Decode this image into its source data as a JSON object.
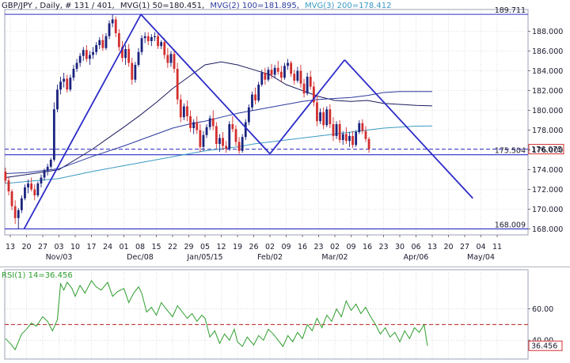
{
  "header": {
    "symbol": "GBP/JPY",
    "meta": ", Daily, # 131 / 401,",
    "mvg1": "MVG(1) 50=180.451,",
    "mvg2": "MVG(2) 100=181.895,",
    "mvg3": "MVG(3) 200=178.412"
  },
  "rsi_header": "RSI(1) 14=36.456",
  "colors": {
    "up": "#1a237e",
    "down": "#d32f2f",
    "trendline": "#2c2cc8",
    "mvg50": "#1c1c5e",
    "mvg100": "#2b3a9e",
    "mvg200": "#3a9ac2",
    "rsi": "#2e9e2e",
    "rsi_level": "#b71c1c",
    "grid": "#c8c8c8"
  },
  "chart_data": [
    {
      "type": "candlestick",
      "title": "GBP/JPY, Daily",
      "ylim": [
        167.4,
        190.2
      ],
      "y_ticks": [
        168.0,
        170.0,
        172.0,
        174.0,
        176.0,
        178.0,
        180.0,
        182.0,
        184.0,
        186.0,
        188.0
      ],
      "day_labels": [
        "13",
        "20",
        "27",
        "03",
        "10",
        "17",
        "24",
        "01",
        "08",
        "15",
        "22",
        "29",
        "05",
        "12",
        "19",
        "26",
        "02",
        "09",
        "16",
        "23",
        "02",
        "09",
        "16",
        "23",
        "30",
        "06",
        "13",
        "20",
        "27",
        "04",
        "11"
      ],
      "month_labels": [
        {
          "index": 3,
          "text": "Nov/03"
        },
        {
          "index": 8,
          "text": "Dec/08"
        },
        {
          "index": 12,
          "text": "Jan/05/15"
        },
        {
          "index": 16,
          "text": "Feb/02"
        },
        {
          "index": 20,
          "text": "Mar/02"
        },
        {
          "index": 25,
          "text": "Apr/06"
        },
        {
          "index": 29,
          "text": "May/04"
        }
      ],
      "price_labels": [
        {
          "value": 189.711,
          "text": "189.711"
        },
        {
          "value": 175.504,
          "text": "175.504"
        },
        {
          "value": 168.009,
          "text": "168.009"
        }
      ],
      "last_price": {
        "value": 176.075,
        "text": "176.075"
      },
      "dashed_level": 176.075,
      "horizontal_lines": [
        189.711,
        175.504,
        168.009
      ],
      "trendlines": [
        {
          "from": [
            0.85,
            168.0
          ],
          "to": [
            8.05,
            189.7
          ]
        },
        {
          "from": [
            8.05,
            189.7
          ],
          "to": [
            16.0,
            175.6
          ]
        },
        {
          "from": [
            16.0,
            175.6
          ],
          "to": [
            20.6,
            185.1
          ]
        },
        {
          "from": [
            20.6,
            185.1
          ],
          "to": [
            28.5,
            171.1
          ]
        }
      ],
      "ohlc_start_index": -0.3,
      "ohlc_step": 0.2,
      "ohlc": [
        [
          173.8,
          174.2,
          172.6,
          172.9
        ],
        [
          172.9,
          173.2,
          171.4,
          171.8
        ],
        [
          171.8,
          172.0,
          169.9,
          170.3
        ],
        [
          170.3,
          170.9,
          168.5,
          169.1
        ],
        [
          169.1,
          170.1,
          168.0,
          169.9
        ],
        [
          169.9,
          171.4,
          169.6,
          171.1
        ],
        [
          171.1,
          172.5,
          170.9,
          172.2
        ],
        [
          172.2,
          173.0,
          171.6,
          172.6
        ],
        [
          172.6,
          173.2,
          171.8,
          172.0
        ],
        [
          172.0,
          172.5,
          170.9,
          171.4
        ],
        [
          171.4,
          172.8,
          171.2,
          172.6
        ],
        [
          172.6,
          173.5,
          172.2,
          173.2
        ],
        [
          173.2,
          174.1,
          172.9,
          173.9
        ],
        [
          173.9,
          174.6,
          173.4,
          174.3
        ],
        [
          174.3,
          175.2,
          174.1,
          175.0
        ],
        [
          175.0,
          180.8,
          174.8,
          180.1
        ],
        [
          180.1,
          182.6,
          179.8,
          182.1
        ],
        [
          182.1,
          183.4,
          181.6,
          182.9
        ],
        [
          182.9,
          183.8,
          182.3,
          183.2
        ],
        [
          183.2,
          183.6,
          181.8,
          182.1
        ],
        [
          182.1,
          183.6,
          181.9,
          183.3
        ],
        [
          183.3,
          184.6,
          183.0,
          184.2
        ],
        [
          184.2,
          185.2,
          183.9,
          184.8
        ],
        [
          184.8,
          185.8,
          184.4,
          185.5
        ],
        [
          185.5,
          186.4,
          185.0,
          186.1
        ],
        [
          186.1,
          186.6,
          184.9,
          185.2
        ],
        [
          185.2,
          186.0,
          184.6,
          185.6
        ],
        [
          185.6,
          186.4,
          185.2,
          185.9
        ],
        [
          185.9,
          186.9,
          185.6,
          186.6
        ],
        [
          186.6,
          187.4,
          186.2,
          187.1
        ],
        [
          187.1,
          187.7,
          186.0,
          186.3
        ],
        [
          186.3,
          187.8,
          186.1,
          187.5
        ],
        [
          187.5,
          189.1,
          187.2,
          188.8
        ],
        [
          188.8,
          189.7,
          188.4,
          189.2
        ],
        [
          189.2,
          189.5,
          187.4,
          187.8
        ],
        [
          187.8,
          188.2,
          186.0,
          186.4
        ],
        [
          186.4,
          187.0,
          184.9,
          185.3
        ],
        [
          185.3,
          186.6,
          184.6,
          186.2
        ],
        [
          186.2,
          186.7,
          184.4,
          184.8
        ],
        [
          184.8,
          185.3,
          182.6,
          183.1
        ],
        [
          183.1,
          184.9,
          182.8,
          184.6
        ],
        [
          184.6,
          186.3,
          184.4,
          185.9
        ],
        [
          185.9,
          187.6,
          185.6,
          187.3
        ],
        [
          187.3,
          187.9,
          186.8,
          187.5
        ],
        [
          187.5,
          187.9,
          186.6,
          187.0
        ],
        [
          187.0,
          187.7,
          186.5,
          187.4
        ],
        [
          187.4,
          187.9,
          187.0,
          187.5
        ],
        [
          187.5,
          187.8,
          186.2,
          186.5
        ],
        [
          186.5,
          187.1,
          186.2,
          186.9
        ],
        [
          186.9,
          187.3,
          185.2,
          185.6
        ],
        [
          185.6,
          186.3,
          184.3,
          184.8
        ],
        [
          184.8,
          186.0,
          184.4,
          185.7
        ],
        [
          185.7,
          186.2,
          183.8,
          184.2
        ],
        [
          184.2,
          184.8,
          180.6,
          181.1
        ],
        [
          181.1,
          181.6,
          178.8,
          179.3
        ],
        [
          179.3,
          180.7,
          179.0,
          180.4
        ],
        [
          180.4,
          181.0,
          178.9,
          179.4
        ],
        [
          179.4,
          180.0,
          177.8,
          178.2
        ],
        [
          178.2,
          179.1,
          177.6,
          178.8
        ],
        [
          178.8,
          179.4,
          177.6,
          178.0
        ],
        [
          178.0,
          178.6,
          175.8,
          176.3
        ],
        [
          176.3,
          177.9,
          175.9,
          177.5
        ],
        [
          177.5,
          178.6,
          177.2,
          178.3
        ],
        [
          178.3,
          179.5,
          178.0,
          179.2
        ],
        [
          179.2,
          180.0,
          178.0,
          178.4
        ],
        [
          178.4,
          178.8,
          176.1,
          176.6
        ],
        [
          176.6,
          177.6,
          175.8,
          177.2
        ],
        [
          177.2,
          177.8,
          176.0,
          176.4
        ],
        [
          176.4,
          176.9,
          175.7,
          176.1
        ],
        [
          176.1,
          178.9,
          175.9,
          178.6
        ],
        [
          178.6,
          179.4,
          177.8,
          178.1
        ],
        [
          178.1,
          178.5,
          176.4,
          176.8
        ],
        [
          176.8,
          177.3,
          175.6,
          175.9
        ],
        [
          175.9,
          177.6,
          175.7,
          177.3
        ],
        [
          177.3,
          179.1,
          177.0,
          178.8
        ],
        [
          178.8,
          180.6,
          178.5,
          180.3
        ],
        [
          180.3,
          181.9,
          180.0,
          181.6
        ],
        [
          181.6,
          182.3,
          180.6,
          181.0
        ],
        [
          181.0,
          182.9,
          180.8,
          182.6
        ],
        [
          182.6,
          184.1,
          182.4,
          183.8
        ],
        [
          183.8,
          184.3,
          182.6,
          183.1
        ],
        [
          183.1,
          184.4,
          182.9,
          184.1
        ],
        [
          184.1,
          184.7,
          183.2,
          183.6
        ],
        [
          183.6,
          184.6,
          183.3,
          184.3
        ],
        [
          184.3,
          185.0,
          183.6,
          183.9
        ],
        [
          183.9,
          184.5,
          182.9,
          183.3
        ],
        [
          183.3,
          184.8,
          183.1,
          184.5
        ],
        [
          184.5,
          185.2,
          184.1,
          184.8
        ],
        [
          184.8,
          185.0,
          183.4,
          183.7
        ],
        [
          183.7,
          184.1,
          182.6,
          183.0
        ],
        [
          183.0,
          184.4,
          182.8,
          184.0
        ],
        [
          184.0,
          184.6,
          182.3,
          182.7
        ],
        [
          182.7,
          183.2,
          181.3,
          181.7
        ],
        [
          181.7,
          183.8,
          181.5,
          183.4
        ],
        [
          183.4,
          184.0,
          182.1,
          182.4
        ],
        [
          182.4,
          182.9,
          180.4,
          180.8
        ],
        [
          180.8,
          181.5,
          178.4,
          178.9
        ],
        [
          178.9,
          180.2,
          178.6,
          179.8
        ],
        [
          179.8,
          180.3,
          178.1,
          178.5
        ],
        [
          178.5,
          180.4,
          178.3,
          180.1
        ],
        [
          180.1,
          180.6,
          178.2,
          178.6
        ],
        [
          178.6,
          179.3,
          176.9,
          177.4
        ],
        [
          177.4,
          178.9,
          177.1,
          178.6
        ],
        [
          178.6,
          179.0,
          176.7,
          177.0
        ],
        [
          177.0,
          177.9,
          176.5,
          177.6
        ],
        [
          177.6,
          178.3,
          176.6,
          176.9
        ],
        [
          176.9,
          177.8,
          176.3,
          177.4
        ],
        [
          177.4,
          177.9,
          176.2,
          176.5
        ],
        [
          176.5,
          178.0,
          176.3,
          177.8
        ],
        [
          177.8,
          179.0,
          177.6,
          178.7
        ],
        [
          178.7,
          179.1,
          177.6,
          177.9
        ],
        [
          177.9,
          178.4,
          176.8,
          177.1
        ],
        [
          177.1,
          177.3,
          175.7,
          176.075
        ]
      ],
      "moving_averages": [
        {
          "name": "MVG(1) 50",
          "x": [
            -0.3,
            1,
            3,
            5,
            7,
            8,
            9,
            10,
            11,
            12,
            13,
            14,
            15,
            16,
            17,
            18,
            19,
            20,
            21,
            22,
            23,
            25,
            26,
            26.0
          ],
          "y": [
            173.2,
            173.5,
            174.0,
            176.0,
            178.3,
            179.5,
            180.8,
            182.2,
            183.4,
            184.6,
            184.9,
            184.6,
            184.1,
            183.6,
            182.6,
            182.0,
            181.4,
            181.0,
            180.9,
            181.0,
            180.7,
            180.5,
            180.45,
            180.45
          ]
        },
        {
          "name": "MVG(2) 100",
          "x": [
            -0.3,
            1,
            3,
            5,
            7,
            8,
            9,
            10,
            11,
            12,
            13,
            14,
            15,
            16,
            17,
            18,
            19,
            20,
            21,
            22,
            23,
            24,
            25,
            26.0
          ],
          "y": [
            173.6,
            173.7,
            174.1,
            175.3,
            176.4,
            177.0,
            177.6,
            178.2,
            178.6,
            178.9,
            179.3,
            179.7,
            180.0,
            180.3,
            180.6,
            180.9,
            181.1,
            181.2,
            181.3,
            181.5,
            181.8,
            181.9,
            181.9,
            181.9
          ]
        },
        {
          "name": "MVG(3) 200",
          "x": [
            -0.3,
            1,
            3,
            5,
            7,
            8,
            9,
            10,
            11,
            12,
            13,
            14,
            15,
            16,
            17,
            18,
            19,
            20,
            21,
            22,
            23,
            24,
            25,
            26.0
          ],
          "y": [
            172.6,
            172.8,
            173.1,
            173.8,
            174.4,
            174.7,
            175.0,
            175.3,
            175.6,
            175.9,
            176.1,
            176.3,
            176.6,
            176.8,
            177.0,
            177.2,
            177.4,
            177.6,
            177.8,
            178.0,
            178.2,
            178.3,
            178.4,
            178.412
          ]
        }
      ]
    },
    {
      "type": "line",
      "title": "RSI(1) 14=36.456",
      "ylim": [
        28,
        85
      ],
      "y_ticks": [
        40.0,
        60.0
      ],
      "reference_level": 50,
      "last_value": {
        "value": 36.456,
        "text": "36.456"
      },
      "x": [
        -0.3,
        0,
        0.3,
        0.7,
        1,
        1.3,
        1.6,
        2,
        2.3,
        2.6,
        2.9,
        3.1,
        3.3,
        3.5,
        3.8,
        4,
        4.3,
        4.6,
        5,
        5.3,
        5.6,
        6,
        6.3,
        6.6,
        7,
        7.3,
        7.6,
        7.9,
        8.1,
        8.4,
        8.7,
        9,
        9.3,
        9.6,
        10,
        10.3,
        10.6,
        10.9,
        11.2,
        11.5,
        11.8,
        12,
        12.3,
        12.6,
        12.9,
        13.2,
        13.5,
        13.8,
        14,
        14.3,
        14.6,
        15,
        15.3,
        15.6,
        15.9,
        16.2,
        16.5,
        16.8,
        17.1,
        17.4,
        17.7,
        18,
        18.3,
        18.6,
        18.9,
        19.2,
        19.5,
        19.8,
        20.1,
        20.4,
        20.7,
        21,
        21.3,
        21.6,
        21.9,
        22.2,
        22.5,
        22.8,
        23.1,
        23.4,
        23.7,
        24,
        24.3,
        24.6,
        24.9,
        25.2,
        25.5,
        25.7
      ],
      "y": [
        41,
        38,
        34,
        44,
        47,
        51,
        49,
        55,
        52,
        46,
        53,
        76,
        72,
        77,
        73,
        68,
        75,
        70,
        78,
        74,
        72,
        77,
        68,
        71,
        73,
        64,
        70,
        74,
        70,
        58,
        61,
        56,
        64,
        60,
        55,
        62,
        58,
        54,
        57,
        52,
        56,
        54,
        42,
        46,
        38,
        44,
        40,
        47,
        39,
        36,
        42,
        37,
        43,
        40,
        47,
        44,
        40,
        36,
        43,
        39,
        45,
        41,
        50,
        46,
        54,
        48,
        56,
        52,
        60,
        55,
        65,
        59,
        63,
        57,
        61,
        55,
        50,
        44,
        48,
        42,
        45,
        39,
        46,
        41,
        48,
        45,
        50,
        36.456
      ]
    }
  ]
}
